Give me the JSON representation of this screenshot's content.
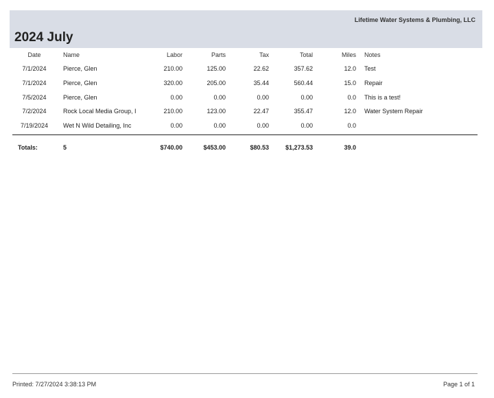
{
  "header": {
    "company": "Lifetime Water Systems & Plumbing, LLC",
    "title": "2024 July"
  },
  "columns": {
    "date": "Date",
    "name": "Name",
    "labor": "Labor",
    "parts": "Parts",
    "tax": "Tax",
    "total": "Total",
    "miles": "Miles",
    "notes": "Notes"
  },
  "rows": [
    {
      "date": "7/1/2024",
      "name": "Pierce, Glen",
      "labor": "210.00",
      "parts": "125.00",
      "tax": "22.62",
      "total": "357.62",
      "miles": "12.0",
      "notes": "Test"
    },
    {
      "date": "7/1/2024",
      "name": "Pierce, Glen",
      "labor": "320.00",
      "parts": "205.00",
      "tax": "35.44",
      "total": "560.44",
      "miles": "15.0",
      "notes": "Repair"
    },
    {
      "date": "7/5/2024",
      "name": "Pierce, Glen",
      "labor": "0.00",
      "parts": "0.00",
      "tax": "0.00",
      "total": "0.00",
      "miles": "0.0",
      "notes": "This is a test!"
    },
    {
      "date": "7/2/2024",
      "name": "Rock Local Media Group, I",
      "labor": "210.00",
      "parts": "123.00",
      "tax": "22.47",
      "total": "355.47",
      "miles": "12.0",
      "notes": "Water System Repair"
    },
    {
      "date": "7/19/2024",
      "name": "Wet N Wild Detailing, Inc",
      "labor": "0.00",
      "parts": "0.00",
      "tax": "0.00",
      "total": "0.00",
      "miles": "0.0",
      "notes": ""
    }
  ],
  "totals": {
    "label": "Totals:",
    "count": "5",
    "labor": "$740.00",
    "parts": "$453.00",
    "tax": "$80.53",
    "total": "$1,273.53",
    "miles": "39.0"
  },
  "footer": {
    "printed": "Printed: 7/27/2024 3:38:13 PM",
    "page": "Page 1 of 1"
  },
  "colors": {
    "header_band": "#d9dde6"
  }
}
